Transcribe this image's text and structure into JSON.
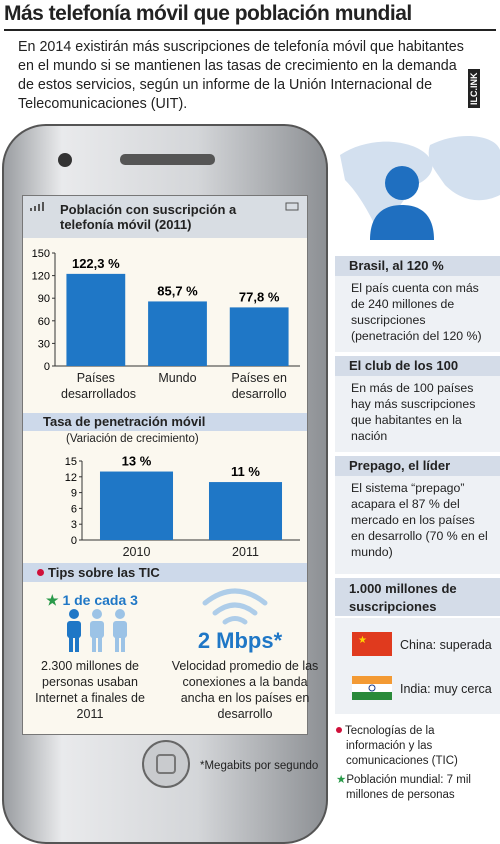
{
  "header": {
    "title": "Más telefonía móvil que población mundial",
    "intro": "En 2014 existirán más suscripciones de telefonía móvil que habitantes en el mundo si se mantienen las tasas de crecimiento en la demanda de estos servicios, según un informe de la Unión Internacional de Telecomunicaciones (UIT).",
    "credit": "ILC.INK"
  },
  "chart_data": [
    {
      "type": "bar",
      "title": "Población con suscripción a telefonía móvil (2011)",
      "categories": [
        "Países desarrollados",
        "Mundo",
        "Países en desarrollo"
      ],
      "values": [
        122.3,
        85.7,
        77.8
      ],
      "value_labels": [
        "122,3 %",
        "85,7 %",
        "77,8 %"
      ],
      "color": "#1f77c6",
      "ylim": [
        0,
        150
      ],
      "yticks": [
        0,
        30,
        60,
        90,
        120,
        150
      ]
    },
    {
      "type": "bar",
      "title": "Tasa de penetración móvil",
      "subtitle": "(Variación de crecimiento)",
      "categories": [
        "2010",
        "2011"
      ],
      "values": [
        13,
        11
      ],
      "value_labels": [
        "13 %",
        "11 %"
      ],
      "color": "#1f77c6",
      "ylim": [
        0,
        15
      ],
      "yticks": [
        0,
        3,
        6,
        9,
        12,
        15
      ]
    }
  ],
  "tips": {
    "title": "Tips sobre las TIC",
    "stat1": "1 de cada 3",
    "text1": "2.300 millones de personas usaban Internet a finales de 2011",
    "stat2": "2 Mbps*",
    "text2": "Velocidad promedio de las conexiones a la banda ancha en los países en desarrollo",
    "footnote": "*Megabits por segundo"
  },
  "sidebar": {
    "sections": [
      {
        "title": "Brasil, al 120 %",
        "text": "El país cuenta con más de 240 millones de suscripciones (penetración del 120 %)"
      },
      {
        "title": "El club de los 100",
        "text": "En más de 100 países hay más suscripciones que habitantes en la nación"
      },
      {
        "title": "Prepago, el líder",
        "text": "El sistema “prepago” acapara el 87 % del mercado en los países en desarrollo (70 % en el mundo)"
      }
    ],
    "milestone": {
      "title": "1.000 millones de suscripciones",
      "items": [
        "China: superada",
        "India: muy cerca"
      ]
    },
    "legend": [
      "Tecnologías de la información y las comunicaciones (TIC)",
      "Población mundial: 7 mil millones de personas"
    ]
  }
}
